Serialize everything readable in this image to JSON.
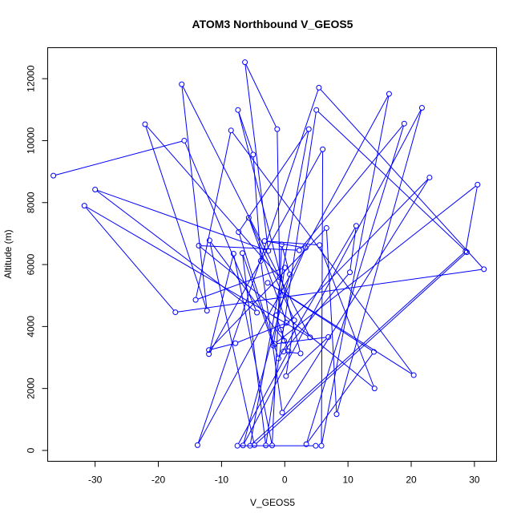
{
  "chart_data": {
    "type": "line",
    "title": "ATOM3 Northbound V_GEOS5",
    "xlabel": "V_GEOS5",
    "ylabel": "Altitude (m)",
    "xlim": [
      -37.5,
      33.5
    ],
    "ylim": [
      -350,
      13000
    ],
    "xticks": [
      -30,
      -20,
      -10,
      0,
      10,
      20,
      30
    ],
    "yticks": [
      0,
      2000,
      4000,
      6000,
      8000,
      10000,
      12000
    ],
    "grid": false,
    "marker": "open-circle",
    "color": "#0000ff",
    "points": [
      [
        -36.6,
        8870
      ],
      [
        -15.9,
        10000
      ],
      [
        -4.4,
        4450
      ],
      [
        -30.0,
        8420
      ],
      [
        -2.6,
        6440
      ],
      [
        -6.3,
        12530
      ],
      [
        -1.2,
        10370
      ],
      [
        -0.8,
        5590
      ],
      [
        -22.1,
        10530
      ],
      [
        -12.3,
        4510
      ],
      [
        -16.3,
        11820
      ],
      [
        4.0,
        3650
      ],
      [
        -31.7,
        7900
      ],
      [
        -17.3,
        4460
      ],
      [
        31.5,
        5850
      ],
      [
        5.4,
        11710
      ],
      [
        -13.8,
        170
      ],
      [
        16.5,
        11510
      ],
      [
        5.8,
        150
      ],
      [
        6.0,
        9720
      ],
      [
        -12.0,
        3110
      ],
      [
        -8.1,
        6350
      ],
      [
        -2.0,
        160
      ],
      [
        -0.5,
        6650
      ],
      [
        0.8,
        5680
      ],
      [
        -6.6,
        160
      ],
      [
        21.7,
        11060
      ],
      [
        8.2,
        1170
      ],
      [
        6.6,
        7180
      ],
      [
        -12.0,
        3240
      ],
      [
        -7.8,
        3460
      ],
      [
        0.3,
        4120
      ],
      [
        -5.7,
        7510
      ],
      [
        1.5,
        4200
      ],
      [
        0.2,
        2400
      ],
      [
        6.9,
        3660
      ],
      [
        -1.6,
        3440
      ],
      [
        30.5,
        8580
      ],
      [
        28.6,
        6430
      ],
      [
        -5.5,
        150
      ],
      [
        3.8,
        10370
      ],
      [
        -7.3,
        7050
      ],
      [
        -1.0,
        2970
      ],
      [
        11.3,
        7250
      ],
      [
        10.3,
        5750
      ],
      [
        -0.2,
        3190
      ],
      [
        2.5,
        3130
      ],
      [
        -7.4,
        10990
      ],
      [
        -5.0,
        9550
      ],
      [
        -3.8,
        6120
      ],
      [
        -0.4,
        1220
      ],
      [
        22.9,
        8810
      ],
      [
        -0.6,
        3900
      ],
      [
        -0.1,
        3540
      ],
      [
        -11.9,
        6780
      ],
      [
        -4.8,
        170
      ],
      [
        28.8,
        6400
      ],
      [
        5.0,
        10990
      ],
      [
        -3.0,
        160
      ],
      [
        -6.7,
        6370
      ],
      [
        -1.8,
        3380
      ],
      [
        0.0,
        5900
      ],
      [
        -14.1,
        4860
      ],
      [
        -8.5,
        10330
      ],
      [
        20.4,
        2430
      ],
      [
        -2.7,
        5410
      ],
      [
        14.1,
        3180
      ],
      [
        3.4,
        200
      ],
      [
        18.9,
        10550
      ],
      [
        2.3,
        6460
      ],
      [
        -13.6,
        6610
      ],
      [
        14.2,
        2000
      ],
      [
        5.5,
        6630
      ],
      [
        -3.2,
        6760
      ],
      [
        3.3,
        6540
      ],
      [
        -1.4,
        4360
      ],
      [
        0.6,
        3200
      ],
      [
        -7.5,
        150
      ],
      [
        4.9,
        150
      ]
    ]
  }
}
